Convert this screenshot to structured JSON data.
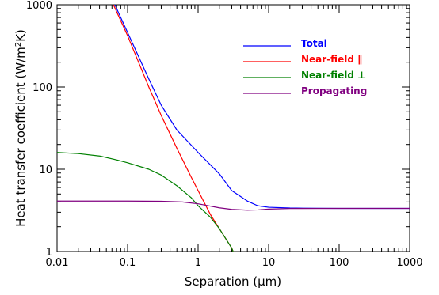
{
  "chart_data": {
    "type": "line",
    "title": "",
    "xlabel": "Separation (μm)",
    "ylabel_main": "Heat transfer coefficient (W/m",
    "ylabel_sup": "2",
    "ylabel_tail": "K)",
    "x_scale": "log",
    "y_scale": "log",
    "xlim": [
      0.01,
      1000
    ],
    "ylim": [
      1,
      1000
    ],
    "x_ticks": [
      0.01,
      0.1,
      1,
      10,
      100,
      1000
    ],
    "x_tick_labels": [
      "0.01",
      "0.1",
      "1",
      "10",
      "100",
      "1000"
    ],
    "y_ticks": [
      1,
      10,
      100,
      1000
    ],
    "y_tick_labels": [
      "1",
      "10",
      "100",
      "1000"
    ],
    "grid": false,
    "legend_position": "top-right",
    "series": [
      {
        "name": "Total",
        "color": "#0000ff",
        "points": [
          [
            0.066,
            1000
          ],
          [
            0.1,
            460
          ],
          [
            0.2,
            125
          ],
          [
            0.3,
            60
          ],
          [
            0.5,
            30
          ],
          [
            1,
            16
          ],
          [
            2,
            8.8
          ],
          [
            3,
            5.5
          ],
          [
            5,
            4.1
          ],
          [
            7,
            3.6
          ],
          [
            10,
            3.45
          ],
          [
            20,
            3.38
          ],
          [
            50,
            3.35
          ],
          [
            100,
            3.34
          ],
          [
            1000,
            3.34
          ]
        ]
      },
      {
        "name": "Near-field ∥",
        "color": "#ff0000",
        "points": [
          [
            0.063,
            1000
          ],
          [
            0.1,
            420
          ],
          [
            0.2,
            100
          ],
          [
            0.3,
            45
          ],
          [
            0.5,
            18
          ],
          [
            0.8,
            8
          ],
          [
            1,
            5.5
          ],
          [
            1.5,
            2.8
          ],
          [
            2,
            1.9
          ],
          [
            3,
            1.1
          ],
          [
            3.3,
            0.9
          ]
        ]
      },
      {
        "name": "Near-field ⊥",
        "color": "#008000",
        "points": [
          [
            0.01,
            16
          ],
          [
            0.02,
            15.5
          ],
          [
            0.04,
            14.5
          ],
          [
            0.07,
            13
          ],
          [
            0.1,
            12
          ],
          [
            0.2,
            10
          ],
          [
            0.3,
            8.5
          ],
          [
            0.5,
            6.3
          ],
          [
            0.8,
            4.5
          ],
          [
            1,
            3.6
          ],
          [
            1.5,
            2.6
          ],
          [
            2,
            1.9
          ],
          [
            3,
            1.1
          ],
          [
            3.3,
            0.9
          ]
        ]
      },
      {
        "name": "Propagating",
        "color": "#800080",
        "points": [
          [
            0.01,
            4.1
          ],
          [
            0.1,
            4.1
          ],
          [
            0.3,
            4.08
          ],
          [
            0.6,
            4.0
          ],
          [
            1,
            3.8
          ],
          [
            2,
            3.4
          ],
          [
            3,
            3.25
          ],
          [
            5,
            3.18
          ],
          [
            7,
            3.2
          ],
          [
            10,
            3.28
          ],
          [
            20,
            3.33
          ],
          [
            100,
            3.34
          ],
          [
            1000,
            3.34
          ]
        ]
      }
    ]
  }
}
